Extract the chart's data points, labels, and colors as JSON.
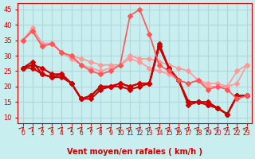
{
  "title": "",
  "xlabel": "Vent moyen/en rafales ( km/h )",
  "background_color": "#c8eef0",
  "grid_color": "#b0d8da",
  "x": [
    0,
    1,
    2,
    3,
    4,
    5,
    6,
    7,
    8,
    9,
    10,
    11,
    12,
    13,
    14,
    15,
    16,
    17,
    18,
    19,
    20,
    21,
    22,
    23
  ],
  "series": [
    {
      "y": [
        35,
        38,
        33,
        34,
        31,
        30,
        29,
        28,
        27,
        27,
        27,
        30,
        29,
        29,
        28,
        27,
        26,
        25,
        22,
        21,
        21,
        20,
        25,
        27
      ],
      "color": "#ff9999",
      "lw": 1.2,
      "marker": "D",
      "ms": 3
    },
    {
      "y": [
        35,
        39,
        34,
        34,
        31,
        29,
        27,
        26,
        25,
        26,
        27,
        29,
        28,
        26,
        25,
        24,
        22,
        21,
        22,
        20,
        20,
        20,
        21,
        27
      ],
      "color": "#ff9999",
      "lw": 1.2,
      "marker": "D",
      "ms": 3
    },
    {
      "y": [
        26,
        27,
        26,
        24,
        24,
        21,
        16,
        17,
        20,
        20,
        21,
        20,
        21,
        21,
        33,
        26,
        22,
        15,
        15,
        14,
        13,
        11,
        17,
        17
      ],
      "color": "#cc0000",
      "lw": 1.5,
      "marker": "D",
      "ms": 3
    },
    {
      "y": [
        26,
        26,
        24,
        23,
        24,
        21,
        16,
        16,
        19,
        20,
        20,
        19,
        20,
        21,
        34,
        26,
        22,
        14,
        15,
        14,
        13,
        11,
        17,
        17
      ],
      "color": "#cc0000",
      "lw": 1.5,
      "marker": "D",
      "ms": 3
    },
    {
      "y": [
        26,
        28,
        24,
        23,
        23,
        21,
        16,
        17,
        20,
        20,
        21,
        20,
        21,
        21,
        33,
        26,
        22,
        15,
        15,
        15,
        13,
        11,
        17,
        17
      ],
      "color": "#cc0000",
      "lw": 1.5,
      "marker": "D",
      "ms": 3
    },
    {
      "y": [
        35,
        38,
        33,
        34,
        31,
        30,
        27,
        25,
        24,
        25,
        27,
        43,
        45,
        37,
        27,
        25,
        22,
        21,
        22,
        19,
        20,
        19,
        16,
        17
      ],
      "color": "#ff5555",
      "lw": 1.2,
      "marker": "D",
      "ms": 3
    }
  ],
  "ylim": [
    8,
    47
  ],
  "yticks": [
    10,
    15,
    20,
    25,
    30,
    35,
    40,
    45
  ],
  "xlim": [
    -0.5,
    23.5
  ],
  "xticks": [
    0,
    1,
    2,
    3,
    4,
    5,
    6,
    7,
    8,
    9,
    10,
    11,
    12,
    13,
    14,
    15,
    16,
    17,
    18,
    19,
    20,
    21,
    22,
    23
  ],
  "arrow_color": "#cc0000",
  "text_color": "#cc0000"
}
